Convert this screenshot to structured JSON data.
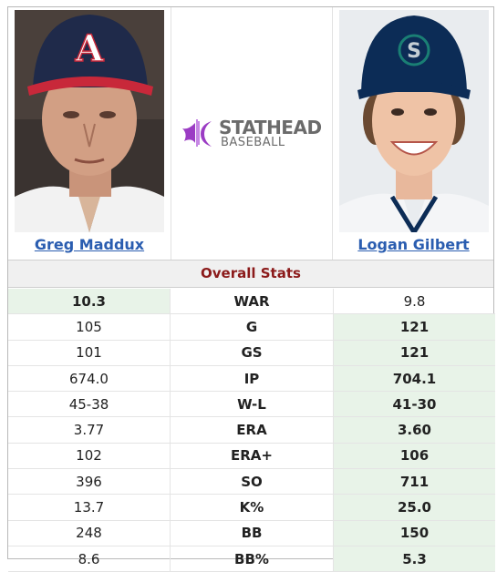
{
  "players": {
    "left": {
      "name": "Greg Maddux",
      "photo": "greg-maddux-portrait"
    },
    "right": {
      "name": "Logan Gilbert",
      "photo": "logan-gilbert-portrait"
    }
  },
  "logo": {
    "main": "STATHEAD",
    "sub": "BASEBALL",
    "icon": "stathead-logo-icon"
  },
  "section_title": "Overall Stats",
  "colors": {
    "win_bg": "#e8f3e8",
    "title_color": "#8b1a1a",
    "link_color": "#2a5db0"
  },
  "stats": [
    {
      "label": "WAR",
      "left": "10.3",
      "right": "9.8",
      "winner": "left"
    },
    {
      "label": "G",
      "left": "105",
      "right": "121",
      "winner": "right"
    },
    {
      "label": "GS",
      "left": "101",
      "right": "121",
      "winner": "right"
    },
    {
      "label": "IP",
      "left": "674.0",
      "right": "704.1",
      "winner": "right"
    },
    {
      "label": "W-L",
      "left": "45-38",
      "right": "41-30",
      "winner": "right"
    },
    {
      "label": "ERA",
      "left": "3.77",
      "right": "3.60",
      "winner": "right"
    },
    {
      "label": "ERA+",
      "left": "102",
      "right": "106",
      "winner": "right"
    },
    {
      "label": "SO",
      "left": "396",
      "right": "711",
      "winner": "right"
    },
    {
      "label": "K%",
      "left": "13.7",
      "right": "25.0",
      "winner": "right"
    },
    {
      "label": "BB",
      "left": "248",
      "right": "150",
      "winner": "right"
    },
    {
      "label": "BB%",
      "left": "8.6",
      "right": "5.3",
      "winner": "right"
    }
  ]
}
